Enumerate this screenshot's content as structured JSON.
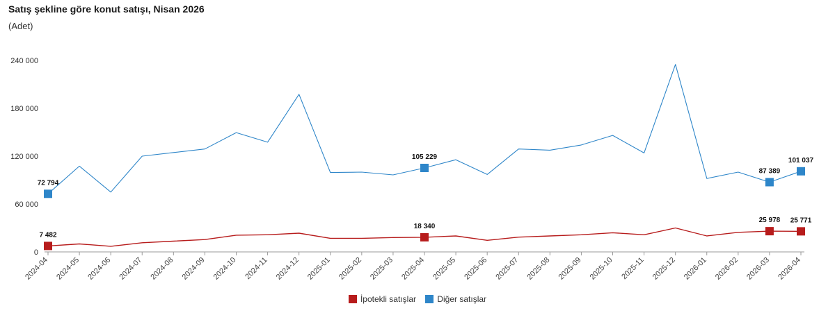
{
  "title": "Satış şekline göre konut satışı, Nisan 2026",
  "subtitle": "(Adet)",
  "chart_data": {
    "type": "line",
    "categories": [
      "2024-04",
      "2024-05",
      "2024-06",
      "2024-07",
      "2024-08",
      "2024-09",
      "2024-10",
      "2024-11",
      "2024-12",
      "2025-01",
      "2025-02",
      "2025-03",
      "2025-04",
      "2025-05",
      "2025-06",
      "2025-07",
      "2025-08",
      "2025-09",
      "2025-10",
      "2025-11",
      "2025-12",
      "2026-01",
      "2026-02",
      "2026-03",
      "2026-04"
    ],
    "ylim": [
      0,
      240000
    ],
    "yticks": [
      0,
      60000,
      120000,
      180000,
      240000
    ],
    "ytick_labels": [
      "0",
      "60 000",
      "120 000",
      "180 000",
      "240 000"
    ],
    "grid": false,
    "legend_position": "bottom",
    "series": [
      {
        "name": "İpotekli satışlar",
        "color": "#b71c1c",
        "values": [
          7482,
          10000,
          7000,
          11500,
          13500,
          15500,
          21000,
          21500,
          23500,
          17000,
          17000,
          18000,
          18340,
          20000,
          14500,
          18500,
          20000,
          21500,
          24000,
          21500,
          30000,
          20000,
          24500,
          25978,
          25771
        ],
        "labeled": [
          {
            "index": 0,
            "label": "7 482"
          },
          {
            "index": 12,
            "label": "18 340"
          },
          {
            "index": 23,
            "label": "25 978"
          },
          {
            "index": 24,
            "label": "25 771"
          }
        ]
      },
      {
        "name": "Diğer satışlar",
        "color": "#2e86c9",
        "values": [
          72794,
          107500,
          75000,
          120000,
          124500,
          129000,
          149500,
          137500,
          197500,
          99500,
          100000,
          96500,
          105229,
          115500,
          97000,
          129000,
          127500,
          134000,
          146000,
          124000,
          235000,
          92000,
          100000,
          87389,
          101037
        ],
        "labeled": [
          {
            "index": 0,
            "label": "72 794"
          },
          {
            "index": 12,
            "label": "105 229"
          },
          {
            "index": 23,
            "label": "87 389"
          },
          {
            "index": 24,
            "label": "101 037"
          }
        ]
      }
    ]
  }
}
